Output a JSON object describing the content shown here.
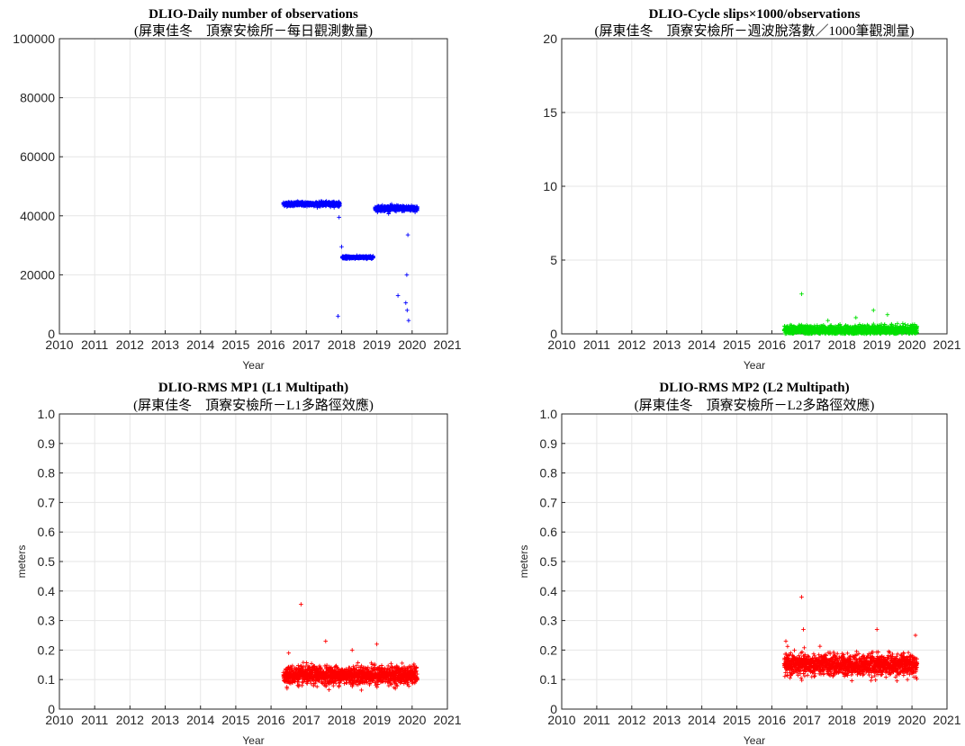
{
  "charts": [
    {
      "type": "scatter",
      "title": "DLIO-Daily number of observations",
      "subtitle": "(屏東佳冬　頂寮安檢所－每日觀測數量)",
      "xlabel": "Year",
      "ylabel": "",
      "xlim": [
        2010,
        2021
      ],
      "ylim": [
        0,
        100000
      ],
      "xticks": [
        "2010",
        "2011",
        "2012",
        "2013",
        "2014",
        "2015",
        "2016",
        "2017",
        "2018",
        "2019",
        "2020",
        "2021"
      ],
      "yticks": [
        "0",
        "20000",
        "40000",
        "60000",
        "80000",
        "100000"
      ],
      "grid": true,
      "color": "#0000ff",
      "marker": "+",
      "segments": [
        {
          "x_start": 2016.35,
          "x_end": 2017.95,
          "y": 44000,
          "noise": 700
        },
        {
          "x_start": 2018.02,
          "x_end": 2018.9,
          "y": 25900,
          "noise": 400
        },
        {
          "x_start": 2018.95,
          "x_end": 2020.15,
          "y": 42500,
          "noise": 900
        }
      ],
      "outliers": [
        {
          "x": 2017.9,
          "y": 6000
        },
        {
          "x": 2017.93,
          "y": 39500
        },
        {
          "x": 2018.0,
          "y": 29500
        },
        {
          "x": 2019.6,
          "y": 13000
        },
        {
          "x": 2019.85,
          "y": 20000
        },
        {
          "x": 2019.88,
          "y": 33500
        },
        {
          "x": 2019.82,
          "y": 10500
        },
        {
          "x": 2019.86,
          "y": 8000
        },
        {
          "x": 2019.9,
          "y": 4500
        }
      ]
    },
    {
      "type": "scatter",
      "title": "DLIO-Cycle slips×1000/observations",
      "subtitle": "(屏東佳冬　頂寮安檢所－週波脫落數／1000筆觀測量)",
      "xlabel": "Year",
      "ylabel": "",
      "xlim": [
        2010,
        2021
      ],
      "ylim": [
        0,
        20
      ],
      "xticks": [
        "2010",
        "2011",
        "2012",
        "2013",
        "2014",
        "2015",
        "2016",
        "2017",
        "2018",
        "2019",
        "2020",
        "2021"
      ],
      "yticks": [
        "0",
        "5",
        "10",
        "15",
        "20"
      ],
      "grid": true,
      "color": "#00e000",
      "marker": "+",
      "segments": [
        {
          "x_start": 2016.35,
          "x_end": 2020.15,
          "y": 0.25,
          "noise": 0.3
        }
      ],
      "outliers": [
        {
          "x": 2016.85,
          "y": 2.7
        },
        {
          "x": 2018.9,
          "y": 1.6
        },
        {
          "x": 2019.3,
          "y": 1.3
        },
        {
          "x": 2018.4,
          "y": 1.1
        },
        {
          "x": 2017.6,
          "y": 0.9
        }
      ]
    },
    {
      "type": "scatter",
      "title": "DLIO-RMS MP1 (L1 Multipath)",
      "subtitle": "(屏東佳冬　頂寮安檢所－L1多路徑效應)",
      "xlabel": "Year",
      "ylabel": "meters",
      "xlim": [
        2010,
        2021
      ],
      "ylim": [
        0,
        1
      ],
      "xticks": [
        "2010",
        "2011",
        "2012",
        "2013",
        "2014",
        "2015",
        "2016",
        "2017",
        "2018",
        "2019",
        "2020",
        "2021"
      ],
      "yticks": [
        "0",
        "0.1",
        "0.2",
        "0.3",
        "0.4",
        "0.5",
        "0.6",
        "0.7",
        "0.8",
        "0.9",
        "1.0"
      ],
      "grid": true,
      "color": "#ff0000",
      "marker": "+",
      "segments": [
        {
          "x_start": 2016.35,
          "x_end": 2020.15,
          "y": 0.115,
          "noise": 0.03
        }
      ],
      "outliers": [
        {
          "x": 2016.85,
          "y": 0.355
        },
        {
          "x": 2017.55,
          "y": 0.23
        },
        {
          "x": 2019.0,
          "y": 0.22
        },
        {
          "x": 2016.5,
          "y": 0.19
        },
        {
          "x": 2018.3,
          "y": 0.2
        }
      ]
    },
    {
      "type": "scatter",
      "title": "DLIO-RMS MP2 (L2 Multipath)",
      "subtitle": "(屏東佳冬　頂寮安檢所－L2多路徑效應)",
      "xlabel": "Year",
      "ylabel": "meters",
      "xlim": [
        2010,
        2021
      ],
      "ylim": [
        0,
        1
      ],
      "xticks": [
        "2010",
        "2011",
        "2012",
        "2013",
        "2014",
        "2015",
        "2016",
        "2017",
        "2018",
        "2019",
        "2020",
        "2021"
      ],
      "yticks": [
        "0",
        "0.1",
        "0.2",
        "0.3",
        "0.4",
        "0.5",
        "0.6",
        "0.7",
        "0.8",
        "0.9",
        "1.0"
      ],
      "grid": true,
      "color": "#ff0000",
      "marker": "+",
      "segments": [
        {
          "x_start": 2016.35,
          "x_end": 2020.15,
          "y": 0.15,
          "noise": 0.035
        }
      ],
      "outliers": [
        {
          "x": 2016.85,
          "y": 0.38
        },
        {
          "x": 2016.9,
          "y": 0.27
        },
        {
          "x": 2019.0,
          "y": 0.27
        },
        {
          "x": 2020.1,
          "y": 0.25
        },
        {
          "x": 2016.4,
          "y": 0.23
        }
      ]
    }
  ]
}
